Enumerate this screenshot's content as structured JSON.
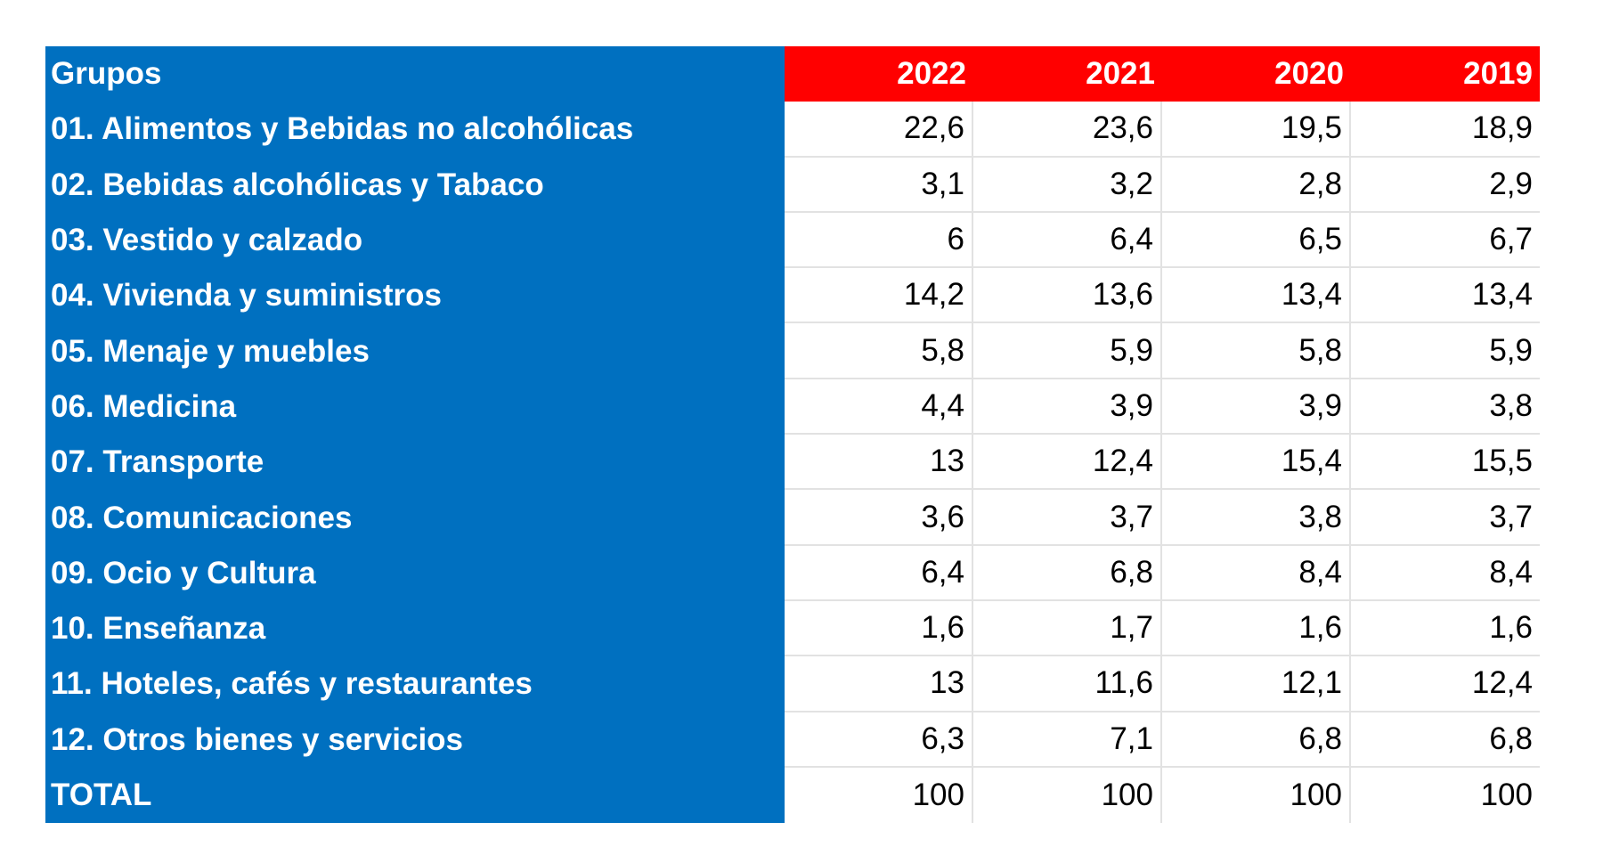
{
  "table": {
    "header": [
      "Grupos",
      "2022",
      "2021",
      "2020",
      "2019"
    ],
    "rows": [
      [
        "01. Alimentos y Bebidas no alcohólicas",
        "22,6",
        "23,6",
        "19,5",
        "18,9"
      ],
      [
        "02. Bebidas alcohólicas y Tabaco",
        "3,1",
        "3,2",
        "2,8",
        "2,9"
      ],
      [
        "03. Vestido y calzado",
        "6",
        "6,4",
        "6,5",
        "6,7"
      ],
      [
        "04. Vivienda y suministros",
        "14,2",
        "13,6",
        "13,4",
        "13,4"
      ],
      [
        "05. Menaje y muebles",
        "5,8",
        "5,9",
        "5,8",
        "5,9"
      ],
      [
        "06. Medicina",
        "4,4",
        "3,9",
        "3,9",
        "3,8"
      ],
      [
        "07. Transporte",
        "13",
        "12,4",
        "15,4",
        "15,5"
      ],
      [
        "08. Comunicaciones",
        "3,6",
        "3,7",
        "3,8",
        "3,7"
      ],
      [
        "09. Ocio y Cultura",
        "6,4",
        "6,8",
        "8,4",
        "8,4"
      ],
      [
        "10. Enseñanza",
        "1,6",
        "1,7",
        "1,6",
        "1,6"
      ],
      [
        "11. Hoteles, cafés y restaurantes",
        "13",
        "11,6",
        "12,1",
        "12,4"
      ],
      [
        "12. Otros bienes y servicios",
        "6,3",
        "7,1",
        "6,8",
        "6,8"
      ],
      [
        "TOTAL",
        "100",
        "100",
        "100",
        "100"
      ]
    ]
  }
}
